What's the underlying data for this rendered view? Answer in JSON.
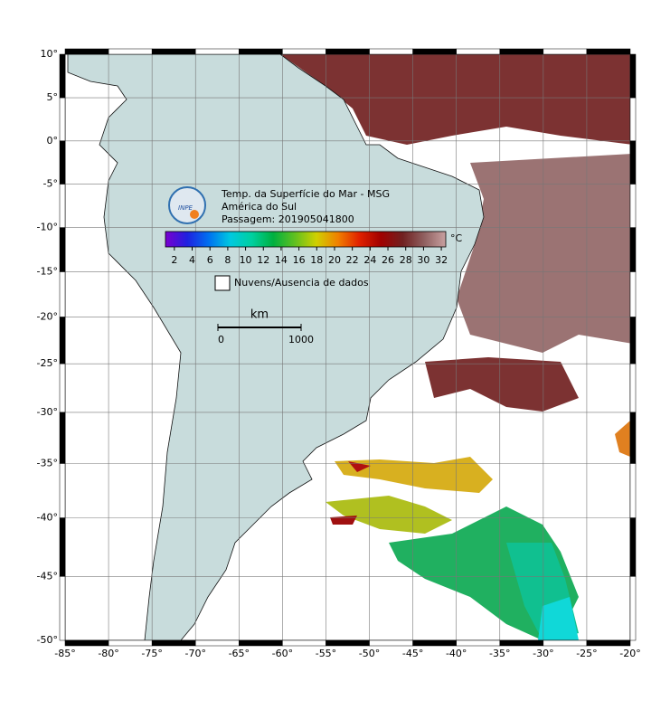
{
  "map": {
    "title": "Temp. da Superfície do Mar - MSG",
    "region": "América do Sul",
    "pass": "Passagem: 201905041800",
    "logo": "INPE",
    "lon_ticks": [
      {
        "value": -85,
        "label": "-85°"
      },
      {
        "value": -80,
        "label": "-80°"
      },
      {
        "value": -75,
        "label": "-75°"
      },
      {
        "value": -70,
        "label": "-70°"
      },
      {
        "value": -65,
        "label": "-65°"
      },
      {
        "value": -60,
        "label": "-60°"
      },
      {
        "value": -55,
        "label": "-55°"
      },
      {
        "value": -50,
        "label": "-50°"
      },
      {
        "value": -45,
        "label": "-45°"
      },
      {
        "value": -40,
        "label": "-40°"
      },
      {
        "value": -35,
        "label": "-35°"
      },
      {
        "value": -30,
        "label": "-30°"
      },
      {
        "value": -25,
        "label": "-25°"
      },
      {
        "value": -20,
        "label": "-20°"
      }
    ],
    "lat_ticks": [
      {
        "value": 10,
        "label": "10°"
      },
      {
        "value": 5,
        "label": "5°"
      },
      {
        "value": 0,
        "label": "0°"
      },
      {
        "value": -5,
        "label": "-5°"
      },
      {
        "value": -10,
        "label": "-10°"
      },
      {
        "value": -15,
        "label": "-15°"
      },
      {
        "value": -20,
        "label": "-20°"
      },
      {
        "value": -25,
        "label": "-25°"
      },
      {
        "value": -30,
        "label": "-30°"
      },
      {
        "value": -35,
        "label": "-35°"
      },
      {
        "value": -40,
        "label": "-40°"
      },
      {
        "value": -45,
        "label": "-45°"
      },
      {
        "value": -50,
        "label": "-50°"
      }
    ],
    "colorbar": {
      "unit": "°C",
      "lim": [
        1,
        32.5
      ],
      "ticks": [
        2,
        4,
        6,
        8,
        10,
        12,
        14,
        16,
        18,
        20,
        22,
        24,
        26,
        28,
        30,
        32
      ],
      "colors": [
        "#7a00d0",
        "#2020e0",
        "#0070f0",
        "#00c8e0",
        "#00d0a0",
        "#00b040",
        "#60c020",
        "#d0d000",
        "#f08000",
        "#e02000",
        "#a00000",
        "#702020",
        "#906060",
        "#c8a0a0"
      ]
    },
    "cloud_legend": "Nuvens/Ausencia de dados",
    "scale_bar": {
      "unit": "km",
      "ticks": [
        0,
        1000
      ]
    }
  }
}
